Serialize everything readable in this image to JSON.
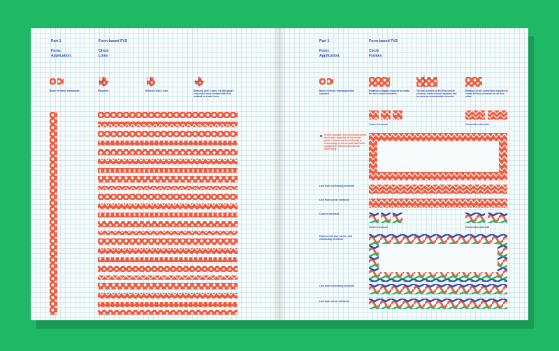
{
  "left": {
    "part": "Part 1",
    "title": "Form-based FVS",
    "form_label": "Form:",
    "form_value": "Circle",
    "application_label": "Application:",
    "application_value": "Lines",
    "captions": [
      "Basic element, rearranged",
      "Repeated",
      "Mirrored over 1 axis",
      "Mirrored over 2 axes. On this page I only used icons created with this method to create lines."
    ]
  },
  "right": {
    "part": "Part 1",
    "title": "Form-based FVS",
    "form_label": "Form:",
    "form_value": "Circle",
    "application_label": "Application:",
    "application_value": "Frames",
    "captions": [
      "Basic element, rearranged and repeated",
      "Rotation of bigger element to create the four corner elements.",
      "The last column of the first corner element, mirrored and repeated can be used as a connection element.",
      "Rotation of the connection element to create all four elements for all four sides."
    ],
    "corner_elements": "Corner elements",
    "connection_elements": "Connection elements",
    "note": "In this example, the connecting parts have been matched to the corner parts. A frame can be built with a connecting or corner part that looks completely different and can be interesting.",
    "line_connecting": "Line from connecting elements",
    "line_corner": "Line from corner elements",
    "colored_elements": "Colored elements",
    "corner_elements_2": "Corner elements",
    "connection_elements_2": "Connection elements",
    "frames_label": "Frames with four corner- and connecting elements",
    "line_connecting_2": "Line from connecting elements",
    "line_corner_2": "Line from corner elements"
  },
  "colors": {
    "background": "#1fb865",
    "orange": "#ee5b3f",
    "blue": "#2c4bb0",
    "green": "#1fb865",
    "paper": "#f8fbfb"
  }
}
